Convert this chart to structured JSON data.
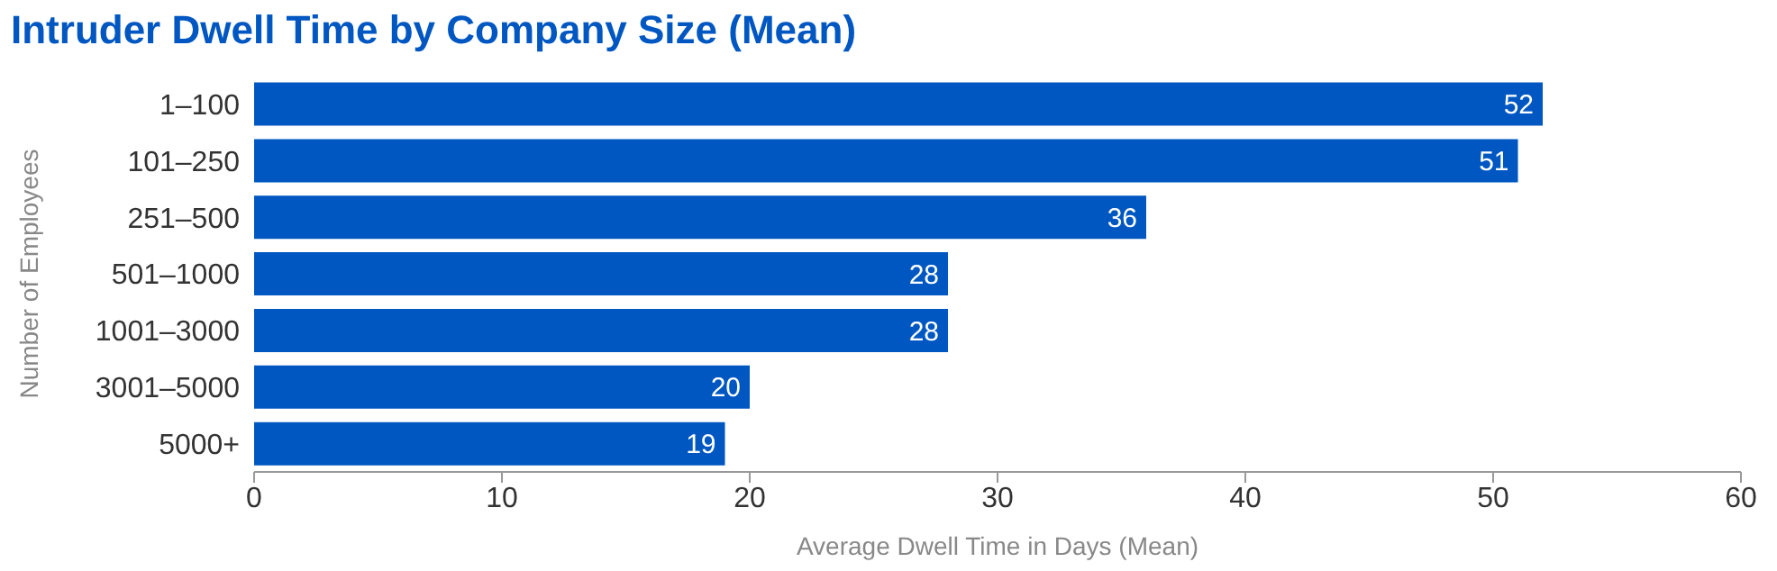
{
  "chart_data": {
    "type": "bar",
    "orientation": "horizontal",
    "title": "Intruder Dwell Time by Company Size (Mean)",
    "xlabel": "Average Dwell Time in Days (Mean)",
    "ylabel": "Number of Employees",
    "categories": [
      "1–100",
      "101–250",
      "251–500",
      "501–1000",
      "1001–3000",
      "3001–5000",
      "5000+"
    ],
    "values": [
      52,
      51,
      36,
      28,
      28,
      20,
      19
    ],
    "color": "#0057c2",
    "data_labels": true,
    "xlim": [
      0,
      60
    ],
    "xticks": [
      0,
      10,
      20,
      30,
      40,
      50,
      60
    ],
    "grid": false
  }
}
